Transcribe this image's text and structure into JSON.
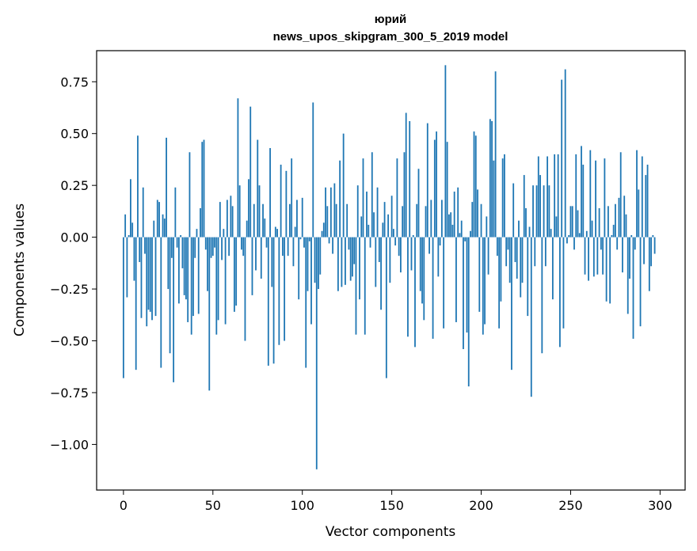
{
  "chart_data": {
    "type": "bar",
    "title": [
      "юрий",
      "news_upos_skipgram_300_5_2019 model"
    ],
    "xlabel": "Vector components",
    "ylabel": "Components values",
    "xlim": [
      -15,
      314
    ],
    "ylim": [
      -1.22,
      0.9
    ],
    "xticks": [
      0,
      50,
      100,
      150,
      200,
      250,
      300
    ],
    "xtick_labels": [
      "0",
      "50",
      "100",
      "150",
      "200",
      "250",
      "300"
    ],
    "yticks": [
      -1.0,
      -0.75,
      -0.5,
      -0.25,
      0.0,
      0.25,
      0.5,
      0.75
    ],
    "ytick_labels": [
      "−1.00",
      "−0.75",
      "−0.50",
      "−0.25",
      "0.00",
      "0.25",
      "0.50",
      "0.75"
    ],
    "grid": false,
    "color": "#1f77b4",
    "values": [
      -0.68,
      0.11,
      -0.29,
      0.01,
      0.28,
      0.07,
      -0.21,
      -0.64,
      0.49,
      -0.12,
      -0.39,
      0.24,
      -0.08,
      -0.43,
      -0.35,
      -0.36,
      -0.4,
      0.08,
      -0.38,
      0.18,
      0.17,
      -0.63,
      0.11,
      0.09,
      0.48,
      -0.25,
      -0.56,
      -0.1,
      -0.7,
      0.24,
      -0.05,
      -0.32,
      0.01,
      -0.15,
      -0.28,
      -0.3,
      -0.41,
      0.41,
      -0.47,
      -0.38,
      -0.1,
      0.04,
      -0.37,
      0.14,
      0.46,
      0.47,
      -0.06,
      -0.26,
      -0.74,
      -0.1,
      -0.09,
      -0.05,
      -0.47,
      -0.4,
      0.17,
      -0.11,
      0.04,
      -0.42,
      0.18,
      -0.09,
      0.2,
      0.15,
      -0.36,
      -0.33,
      0.67,
      0.25,
      -0.06,
      -0.09,
      -0.5,
      0.08,
      0.28,
      0.63,
      -0.28,
      0.16,
      -0.16,
      0.47,
      0.25,
      -0.2,
      0.16,
      0.09,
      -0.05,
      -0.62,
      0.43,
      -0.24,
      -0.61,
      0.05,
      0.04,
      -0.52,
      0.35,
      -0.09,
      -0.5,
      0.32,
      -0.09,
      0.16,
      0.38,
      -0.14,
      0.05,
      0.18,
      -0.3,
      -0.01,
      0.19,
      -0.05,
      -0.63,
      -0.26,
      -0.02,
      -0.42,
      0.65,
      -0.22,
      -1.12,
      -0.25,
      -0.18,
      0.03,
      0.07,
      0.24,
      0.15,
      -0.03,
      0.24,
      -0.08,
      0.26,
      0.16,
      -0.26,
      0.37,
      -0.24,
      0.5,
      -0.23,
      0.16,
      -0.06,
      -0.21,
      -0.19,
      -0.13,
      -0.47,
      0.25,
      -0.3,
      0.1,
      0.38,
      -0.47,
      0.22,
      0.06,
      -0.05,
      0.41,
      0.12,
      -0.24,
      0.24,
      -0.12,
      -0.35,
      0.07,
      0.17,
      -0.68,
      0.11,
      -0.22,
      0.2,
      0.04,
      -0.04,
      0.38,
      -0.09,
      -0.17,
      0.15,
      0.41,
      0.6,
      -0.48,
      0.56,
      -0.16,
      0.01,
      -0.53,
      0.16,
      0.33,
      -0.26,
      -0.32,
      -0.4,
      0.15,
      0.55,
      -0.08,
      0.18,
      -0.49,
      0.47,
      0.51,
      -0.19,
      -0.04,
      0.18,
      -0.44,
      0.83,
      0.46,
      0.11,
      0.12,
      0.06,
      0.22,
      -0.41,
      0.24,
      0.02,
      0.08,
      -0.54,
      -0.02,
      -0.46,
      -0.72,
      0.03,
      0.17,
      0.51,
      0.49,
      0.23,
      -0.36,
      0.16,
      -0.47,
      -0.42,
      0.1,
      -0.18,
      0.57,
      0.56,
      0.37,
      0.8,
      -0.09,
      -0.44,
      -0.31,
      0.38,
      0.4,
      -0.14,
      -0.06,
      -0.22,
      -0.64,
      0.26,
      -0.12,
      -0.2,
      0.08,
      -0.29,
      -0.22,
      0.3,
      0.14,
      -0.38,
      0.05,
      -0.77,
      0.25,
      -0.14,
      0.25,
      0.39,
      0.3,
      -0.56,
      0.25,
      -0.14,
      0.39,
      0.25,
      0.04,
      -0.3,
      0.4,
      0.1,
      0.4,
      -0.53,
      0.76,
      -0.44,
      0.81,
      -0.03,
      0.01,
      0.15,
      0.15,
      -0.06,
      0.4,
      0.13,
      0.02,
      0.44,
      0.35,
      -0.18,
      0.03,
      -0.21,
      0.42,
      0.08,
      -0.19,
      0.37,
      -0.18,
      0.14,
      -0.06,
      -0.18,
      0.38,
      -0.31,
      0.15,
      -0.32,
      0.01,
      0.06,
      0.16,
      -0.06,
      0.19,
      0.41,
      -0.17,
      0.2,
      0.11,
      -0.37,
      -0.2,
      0.01,
      -0.49,
      -0.06,
      0.42,
      0.23,
      -0.43,
      0.39,
      -0.13,
      0.3,
      0.35,
      -0.26,
      -0.14,
      0.01,
      -0.08
    ]
  }
}
